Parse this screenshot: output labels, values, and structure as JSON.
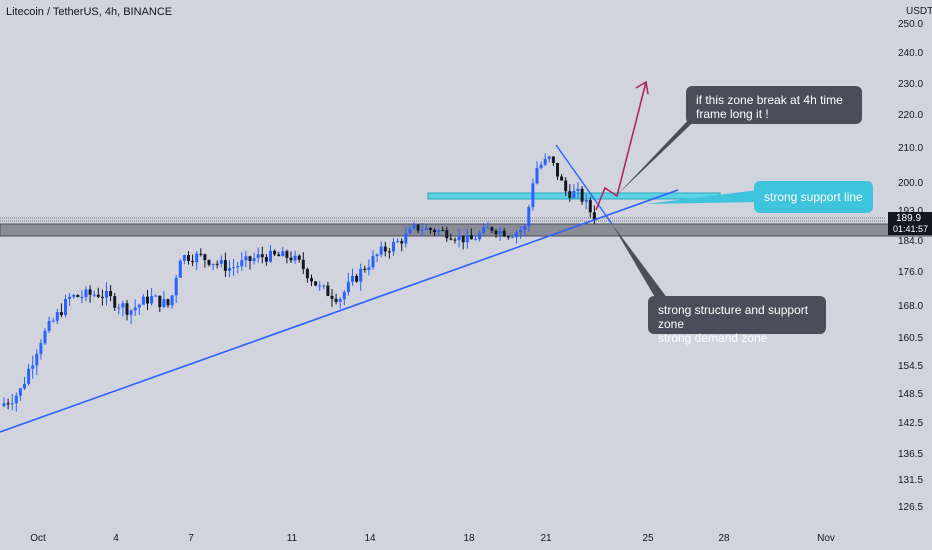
{
  "header": {
    "title": "Litecoin / TetherUS, 4h, BINANCE"
  },
  "colors": {
    "bg": "#d1d4dc",
    "up": "#2962ff",
    "down": "#131722",
    "trend": "#2962ff",
    "zone": "#8a8d96",
    "support": "#5fd3e6",
    "arrow": "#b0285a",
    "note_dark": "#4a4e5a",
    "note_cyan": "#3ec4dc"
  },
  "chart_data": {
    "type": "candlestick",
    "symbol": "Litecoin / TetherUS",
    "timeframe": "4h",
    "exchange": "BINANCE",
    "currency": "USDT",
    "y_ticks": [
      "250.0",
      "240.0",
      "230.0",
      "220.0",
      "210.0",
      "200.0",
      "193.0",
      "184.0",
      "176.0",
      "168.0",
      "160.5",
      "154.5",
      "148.5",
      "142.5",
      "136.5",
      "131.5",
      "126.5"
    ],
    "x_ticks": [
      "Oct",
      "4",
      "7",
      "11",
      "14",
      "18",
      "21",
      "25",
      "28",
      "Nov"
    ],
    "last_price": "189.9",
    "countdown": "01:41:57",
    "ylim": [
      122,
      258
    ],
    "trendline": {
      "from": [
        "Oct",
        141.0
      ],
      "to": [
        "25",
        199.5
      ]
    }
  },
  "annotations": {
    "note_top": "if this zone break at 4h time frame long it !",
    "note_support": "strong support line",
    "note_bottom_1": "strong structure and support zone",
    "note_bottom_2": "strong demand zone"
  }
}
